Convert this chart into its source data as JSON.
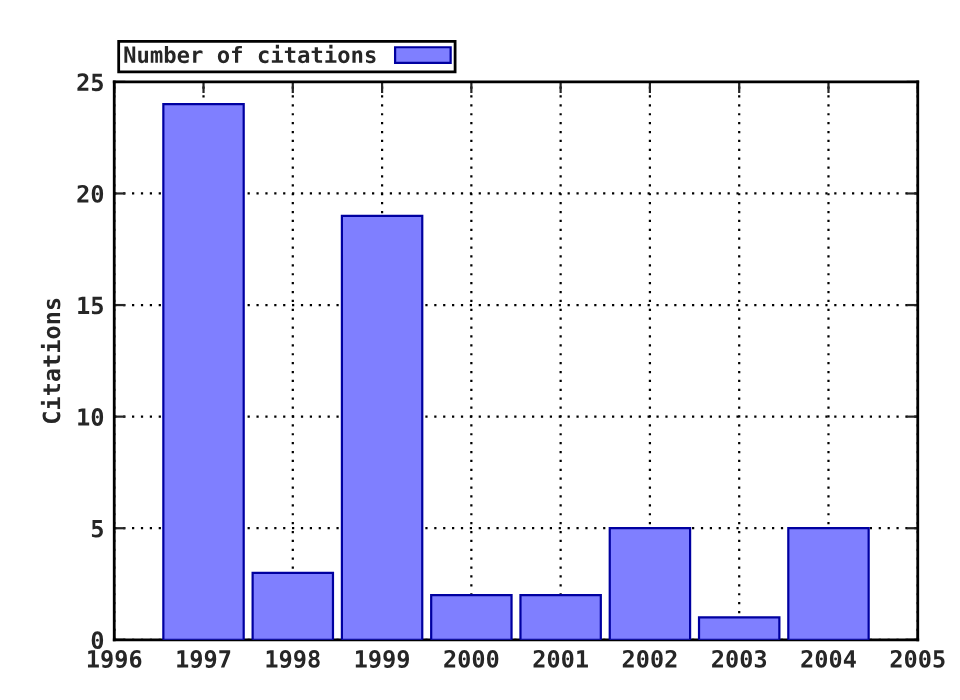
{
  "chart_data": {
    "type": "bar",
    "ylabel": "Citations",
    "x": [
      1997,
      1998,
      1999,
      2000,
      2001,
      2002,
      2003,
      2004
    ],
    "series": [
      {
        "name": "Number of citations",
        "color": "#7f7fff",
        "values": [
          24,
          3,
          19,
          2,
          2,
          5,
          1,
          5
        ]
      }
    ],
    "xlim": [
      1996,
      2005
    ],
    "xticks": [
      1996,
      1997,
      1998,
      1999,
      2000,
      2001,
      2002,
      2003,
      2004,
      2005
    ],
    "ylim": [
      0,
      25
    ],
    "yticks": [
      0,
      5,
      10,
      15,
      20,
      25
    ],
    "grid": true,
    "legend": "top left"
  }
}
